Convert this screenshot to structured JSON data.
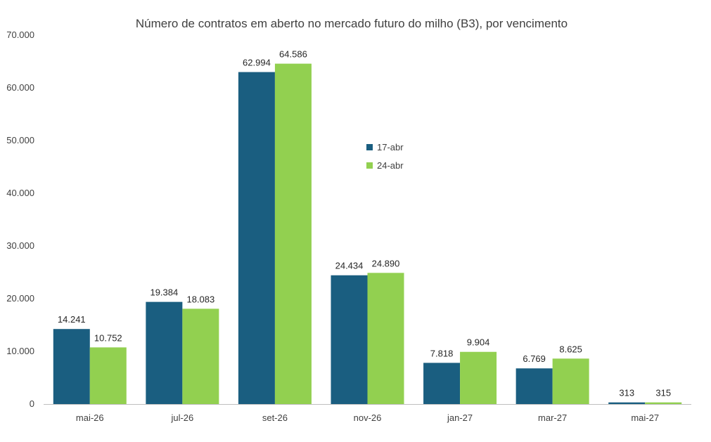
{
  "chart_data": {
    "type": "bar",
    "title": "Número de contratos em aberto no mercado futuro do milho (B3), por vencimento",
    "xlabel": "",
    "ylabel": "",
    "ylim": [
      0,
      70000
    ],
    "yticks": [
      0,
      10000,
      20000,
      30000,
      40000,
      50000,
      60000,
      70000
    ],
    "ytick_labels": [
      "0",
      "10.000",
      "20.000",
      "30.000",
      "40.000",
      "50.000",
      "60.000",
      "70.000"
    ],
    "categories": [
      "mai-26",
      "jul-26",
      "set-26",
      "nov-26",
      "jan-27",
      "mar-27",
      "mai-27"
    ],
    "series": [
      {
        "name": "17-abr",
        "color": "#1a5e80",
        "values": [
          14241,
          19384,
          62994,
          24434,
          7818,
          6769,
          313
        ],
        "labels": [
          "14.241",
          "19.384",
          "62.994",
          "24.434",
          "7.818",
          "6.769",
          "313"
        ]
      },
      {
        "name": "24-abr",
        "color": "#92d050",
        "values": [
          10752,
          18083,
          64586,
          24890,
          9904,
          8625,
          315
        ],
        "labels": [
          "10.752",
          "18.083",
          "64.586",
          "24.890",
          "9.904",
          "8.625",
          "315"
        ]
      }
    ],
    "grid": false,
    "legend_position": "inside-top-center",
    "axis_color": "#bfbfbf"
  }
}
